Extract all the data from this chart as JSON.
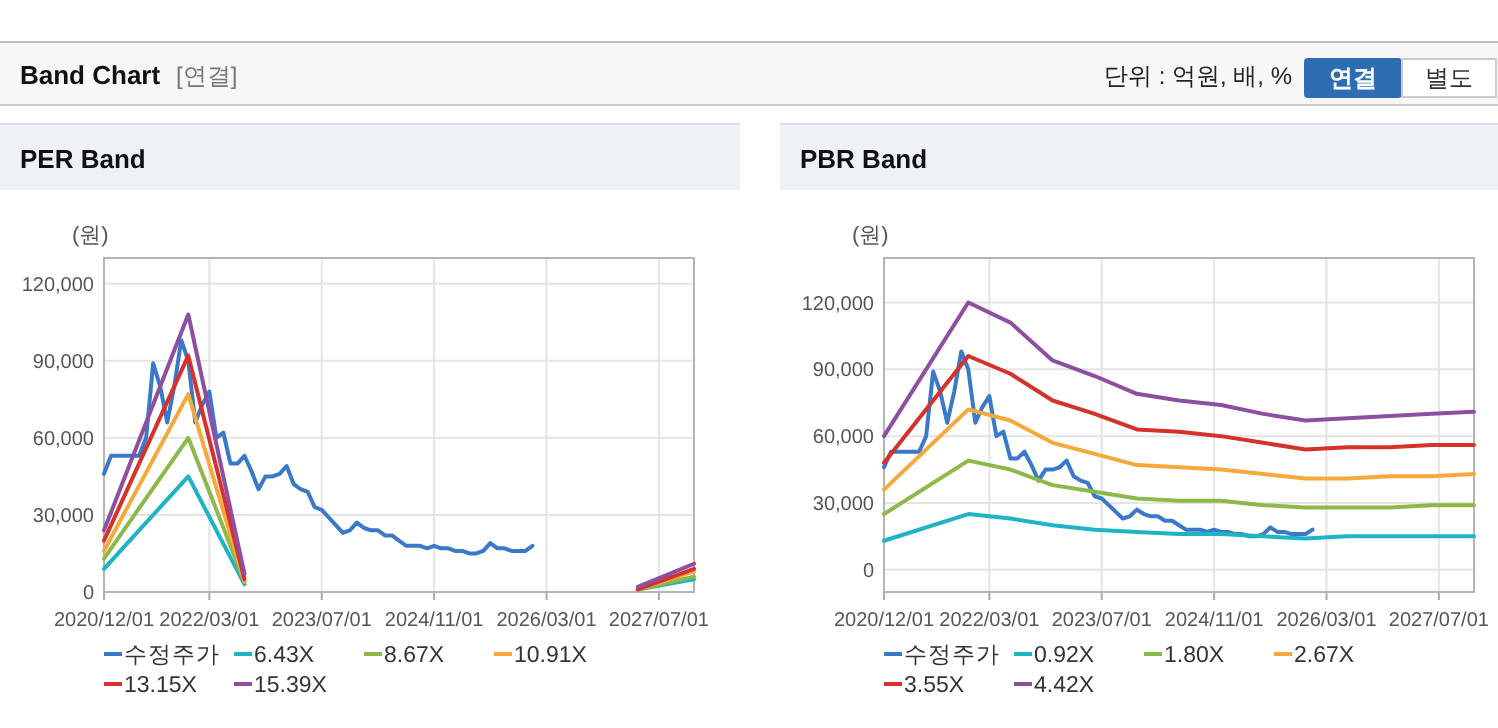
{
  "chart_data": [
    {
      "type": "other",
      "title": "Band Chart",
      "annotations": [
        "[연결]",
        "단위 : 억원, 배, %",
        "연결",
        "별도"
      ]
    },
    {
      "type": "line",
      "title": "PER Band",
      "ylabel": "(원)",
      "grid": true,
      "legend": "bottom",
      "xlim": [
        "2020-12-01",
        "2027-12-01"
      ],
      "ylim": [
        0,
        130000
      ],
      "xticks": [
        {
          "value": "2020-12-01",
          "label": "2020/12/01"
        },
        {
          "value": "2022-03-01",
          "label": "2022/03/01"
        },
        {
          "value": "2023-07-01",
          "label": "2023/07/01"
        },
        {
          "value": "2024-11-01",
          "label": "2024/11/01"
        },
        {
          "value": "2026-03-01",
          "label": "2026/03/01"
        },
        {
          "value": "2027-07-01",
          "label": "2027/07/01"
        }
      ],
      "yticks": [
        0,
        {
          "value": 30000,
          "label": "30,000"
        },
        {
          "value": 60000,
          "label": "60,000"
        },
        {
          "value": 90000,
          "label": "90,000"
        },
        {
          "value": 120000,
          "label": "120,000"
        }
      ],
      "x": [
        "2020-12",
        "2021-01",
        "2021-02",
        "2021-03",
        "2021-04",
        "2021-05",
        "2021-06",
        "2021-07",
        "2021-08",
        "2021-09",
        "2021-10",
        "2021-11",
        "2021-12",
        "2022-01",
        "2022-02",
        "2022-03",
        "2022-04",
        "2022-05",
        "2022-06",
        "2022-07",
        "2022-08",
        "2022-09",
        "2022-10",
        "2022-11",
        "2022-12",
        "2023-01",
        "2023-02",
        "2023-03",
        "2023-04",
        "2023-05",
        "2023-06",
        "2023-07",
        "2023-08",
        "2023-09",
        "2023-10",
        "2023-11",
        "2023-12",
        "2024-01",
        "2024-02",
        "2024-03",
        "2024-04",
        "2024-05",
        "2024-06",
        "2024-07",
        "2024-08",
        "2024-09",
        "2024-10",
        "2024-11",
        "2024-12",
        "2025-01",
        "2025-02",
        "2025-03",
        "2025-04",
        "2025-05",
        "2025-06",
        "2025-07",
        "2025-08",
        "2025-09",
        "2025-10",
        "2025-11",
        "2025-12",
        "2026-01"
      ],
      "series": [
        {
          "name": "수정주가",
          "color": "#3a78c9",
          "values": [
            46000,
            53000,
            53000,
            53000,
            53000,
            53000,
            60000,
            89000,
            80000,
            66000,
            80000,
            98000,
            90000,
            66000,
            73000,
            78000,
            60000,
            62000,
            50000,
            50000,
            53000,
            47000,
            40000,
            45000,
            45000,
            46000,
            49000,
            42000,
            40000,
            39000,
            33000,
            32000,
            29000,
            26000,
            23000,
            24000,
            27000,
            25000,
            24000,
            24000,
            22000,
            22000,
            20000,
            18000,
            18000,
            18000,
            17000,
            18000,
            17000,
            17000,
            16000,
            16000,
            15000,
            15000,
            16000,
            19000,
            17000,
            17000,
            16000,
            16000,
            16000,
            18000
          ]
        },
        {
          "name": "6.43X",
          "color": "#1fb3c6",
          "x": [
            "2020-12",
            "2021-12",
            "2022-08",
            null,
            "2027-04",
            "2027-12"
          ],
          "values": [
            9000,
            45000,
            3000,
            null,
            1000,
            5000
          ]
        },
        {
          "name": "8.67X",
          "color": "#8db84a",
          "x": [
            "2020-12",
            "2021-12",
            "2022-08",
            null,
            "2027-04",
            "2027-12"
          ],
          "values": [
            13000,
            60000,
            4000,
            null,
            1000,
            6000
          ]
        },
        {
          "name": "10.91X",
          "color": "#f4a93a",
          "x": [
            "2020-12",
            "2021-12",
            "2022-08",
            null,
            "2027-04",
            "2027-12"
          ],
          "values": [
            16000,
            77000,
            4000,
            null,
            1000,
            8000
          ]
        },
        {
          "name": "13.15X",
          "color": "#d5322c",
          "x": [
            "2020-12",
            "2021-12",
            "2022-08",
            null,
            "2027-04",
            "2027-12"
          ],
          "values": [
            20000,
            92000,
            5000,
            null,
            1000,
            9000
          ]
        },
        {
          "name": "15.39X",
          "color": "#8e4fa1",
          "x": [
            "2020-12",
            "2021-12",
            "2022-08",
            null,
            "2027-04",
            "2027-12"
          ],
          "values": [
            24000,
            108000,
            7000,
            null,
            2000,
            11000
          ]
        }
      ]
    },
    {
      "type": "line",
      "title": "PBR Band",
      "ylabel": "(원)",
      "grid": true,
      "legend": "bottom",
      "xlim": [
        "2020-12-01",
        "2027-12-01"
      ],
      "ylim": [
        -10000,
        140000
      ],
      "xticks": [
        {
          "value": "2020-12-01",
          "label": "2020/12/01"
        },
        {
          "value": "2022-03-01",
          "label": "2022/03/01"
        },
        {
          "value": "2023-07-01",
          "label": "2023/07/01"
        },
        {
          "value": "2024-11-01",
          "label": "2024/11/01"
        },
        {
          "value": "2026-03-01",
          "label": "2026/03/01"
        },
        {
          "value": "2027-07-01",
          "label": "2027/07/01"
        }
      ],
      "yticks": [
        0,
        {
          "value": 30000,
          "label": "30,000"
        },
        {
          "value": 60000,
          "label": "60,000"
        },
        {
          "value": 90000,
          "label": "90,000"
        },
        {
          "value": 120000,
          "label": "120,000"
        }
      ],
      "x": [
        "2020-12",
        "2021-01",
        "2021-02",
        "2021-03",
        "2021-04",
        "2021-05",
        "2021-06",
        "2021-07",
        "2021-08",
        "2021-09",
        "2021-10",
        "2021-11",
        "2021-12",
        "2022-01",
        "2022-02",
        "2022-03",
        "2022-04",
        "2022-05",
        "2022-06",
        "2022-07",
        "2022-08",
        "2022-09",
        "2022-10",
        "2022-11",
        "2022-12",
        "2023-01",
        "2023-02",
        "2023-03",
        "2023-04",
        "2023-05",
        "2023-06",
        "2023-07",
        "2023-08",
        "2023-09",
        "2023-10",
        "2023-11",
        "2023-12",
        "2024-01",
        "2024-02",
        "2024-03",
        "2024-04",
        "2024-05",
        "2024-06",
        "2024-07",
        "2024-08",
        "2024-09",
        "2024-10",
        "2024-11",
        "2024-12",
        "2025-01",
        "2025-02",
        "2025-03",
        "2025-04",
        "2025-05",
        "2025-06",
        "2025-07",
        "2025-08",
        "2025-09",
        "2025-10",
        "2025-11",
        "2025-12",
        "2026-01"
      ],
      "series": [
        {
          "name": "수정주가",
          "color": "#3a78c9",
          "values": [
            46000,
            53000,
            53000,
            53000,
            53000,
            53000,
            60000,
            89000,
            80000,
            66000,
            80000,
            98000,
            90000,
            66000,
            73000,
            78000,
            60000,
            62000,
            50000,
            50000,
            53000,
            47000,
            40000,
            45000,
            45000,
            46000,
            49000,
            42000,
            40000,
            39000,
            33000,
            32000,
            29000,
            26000,
            23000,
            24000,
            27000,
            25000,
            24000,
            24000,
            22000,
            22000,
            20000,
            18000,
            18000,
            18000,
            17000,
            18000,
            17000,
            17000,
            16000,
            16000,
            15000,
            15000,
            16000,
            19000,
            17000,
            17000,
            16000,
            16000,
            16000,
            18000
          ]
        },
        {
          "name": "0.92X",
          "color": "#1fb3c6",
          "x": [
            "2020-12",
            "2021-12",
            "2022-06",
            "2022-12",
            "2023-06",
            "2023-12",
            "2024-06",
            "2024-12",
            "2025-06",
            "2025-12",
            "2026-06",
            "2026-12",
            "2027-06",
            "2027-12"
          ],
          "values": [
            13000,
            25000,
            23000,
            20000,
            18000,
            17000,
            16000,
            16000,
            15000,
            14000,
            15000,
            15000,
            15000,
            15000
          ]
        },
        {
          "name": "1.80X",
          "color": "#8db84a",
          "x": [
            "2020-12",
            "2021-12",
            "2022-06",
            "2022-12",
            "2023-06",
            "2023-12",
            "2024-06",
            "2024-12",
            "2025-06",
            "2025-12",
            "2026-06",
            "2026-12",
            "2027-06",
            "2027-12"
          ],
          "values": [
            25000,
            49000,
            45000,
            38000,
            35000,
            32000,
            31000,
            31000,
            29000,
            28000,
            28000,
            28000,
            29000,
            29000
          ]
        },
        {
          "name": "2.67X",
          "color": "#f4a93a",
          "x": [
            "2020-12",
            "2021-12",
            "2022-06",
            "2022-12",
            "2023-06",
            "2023-12",
            "2024-06",
            "2024-12",
            "2025-06",
            "2025-12",
            "2026-06",
            "2026-12",
            "2027-06",
            "2027-12"
          ],
          "values": [
            36000,
            72000,
            67000,
            57000,
            52000,
            47000,
            46000,
            45000,
            43000,
            41000,
            41000,
            42000,
            42000,
            43000
          ]
        },
        {
          "name": "3.55X",
          "color": "#d5322c",
          "x": [
            "2020-12",
            "2021-12",
            "2022-06",
            "2022-12",
            "2023-06",
            "2023-12",
            "2024-06",
            "2024-12",
            "2025-06",
            "2025-12",
            "2026-06",
            "2026-12",
            "2027-06",
            "2027-12"
          ],
          "values": [
            48000,
            96000,
            88000,
            76000,
            70000,
            63000,
            62000,
            60000,
            57000,
            54000,
            55000,
            55000,
            56000,
            56000
          ]
        },
        {
          "name": "4.42X",
          "color": "#8e4fa1",
          "x": [
            "2020-12",
            "2021-12",
            "2022-06",
            "2022-12",
            "2023-06",
            "2023-12",
            "2024-06",
            "2024-12",
            "2025-06",
            "2025-12",
            "2026-06",
            "2026-12",
            "2027-06",
            "2027-12"
          ],
          "values": [
            60000,
            120000,
            111000,
            94000,
            87000,
            79000,
            76000,
            74000,
            70000,
            67000,
            68000,
            69000,
            70000,
            71000
          ]
        }
      ]
    }
  ]
}
